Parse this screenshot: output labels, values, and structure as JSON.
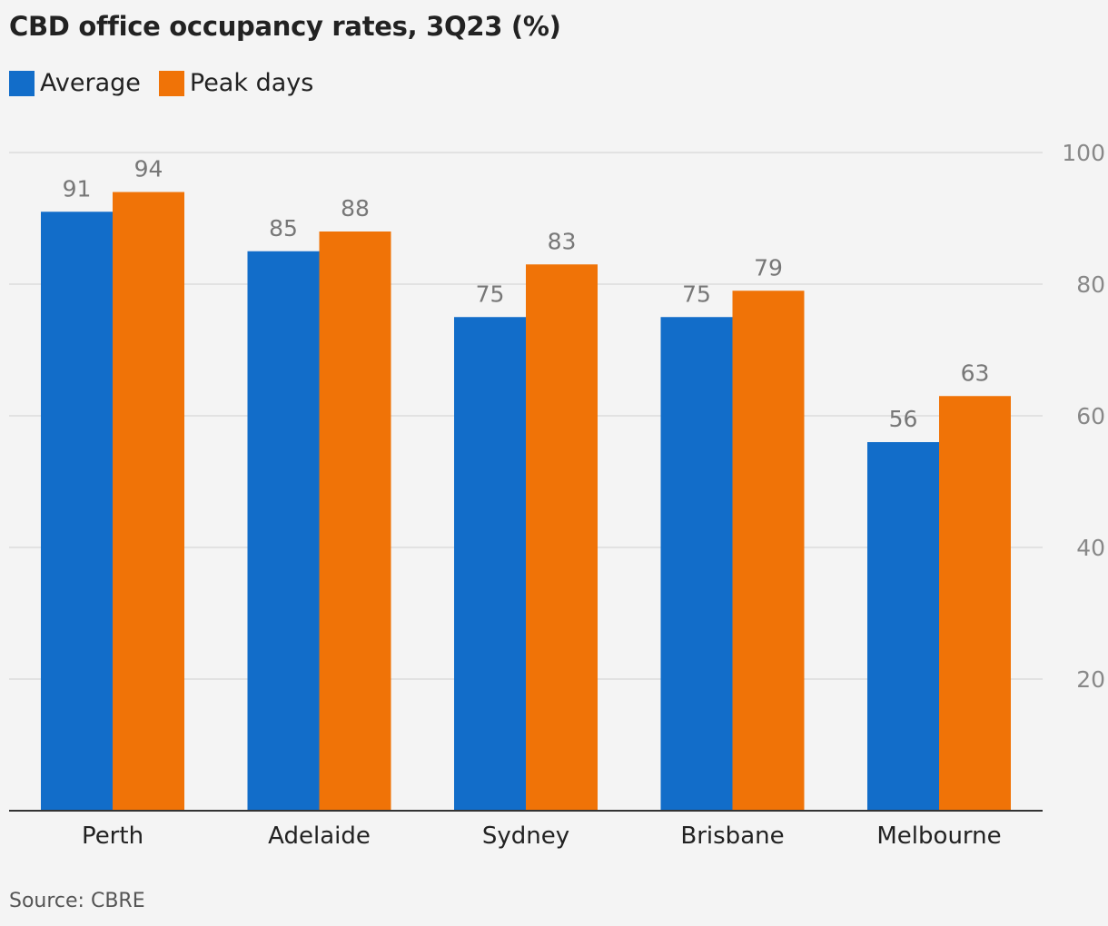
{
  "chart_data": {
    "type": "bar",
    "title": "CBD office occupancy rates, 3Q23 (%)",
    "categories": [
      "Perth",
      "Adelaide",
      "Sydney",
      "Brisbane",
      "Melbourne"
    ],
    "series": [
      {
        "name": "Average",
        "values": [
          91,
          85,
          75,
          75,
          56
        ],
        "color": "#126dc9"
      },
      {
        "name": "Peak days",
        "values": [
          94,
          88,
          83,
          79,
          63
        ],
        "color": "#f07307"
      }
    ],
    "yticks": [
      20,
      40,
      60,
      80,
      100
    ],
    "ylim": [
      0,
      100
    ],
    "y_axis_side": "right",
    "grid": true,
    "legend_position": "top-left",
    "xlabel": "",
    "ylabel": ""
  },
  "source": "Source: CBRE"
}
